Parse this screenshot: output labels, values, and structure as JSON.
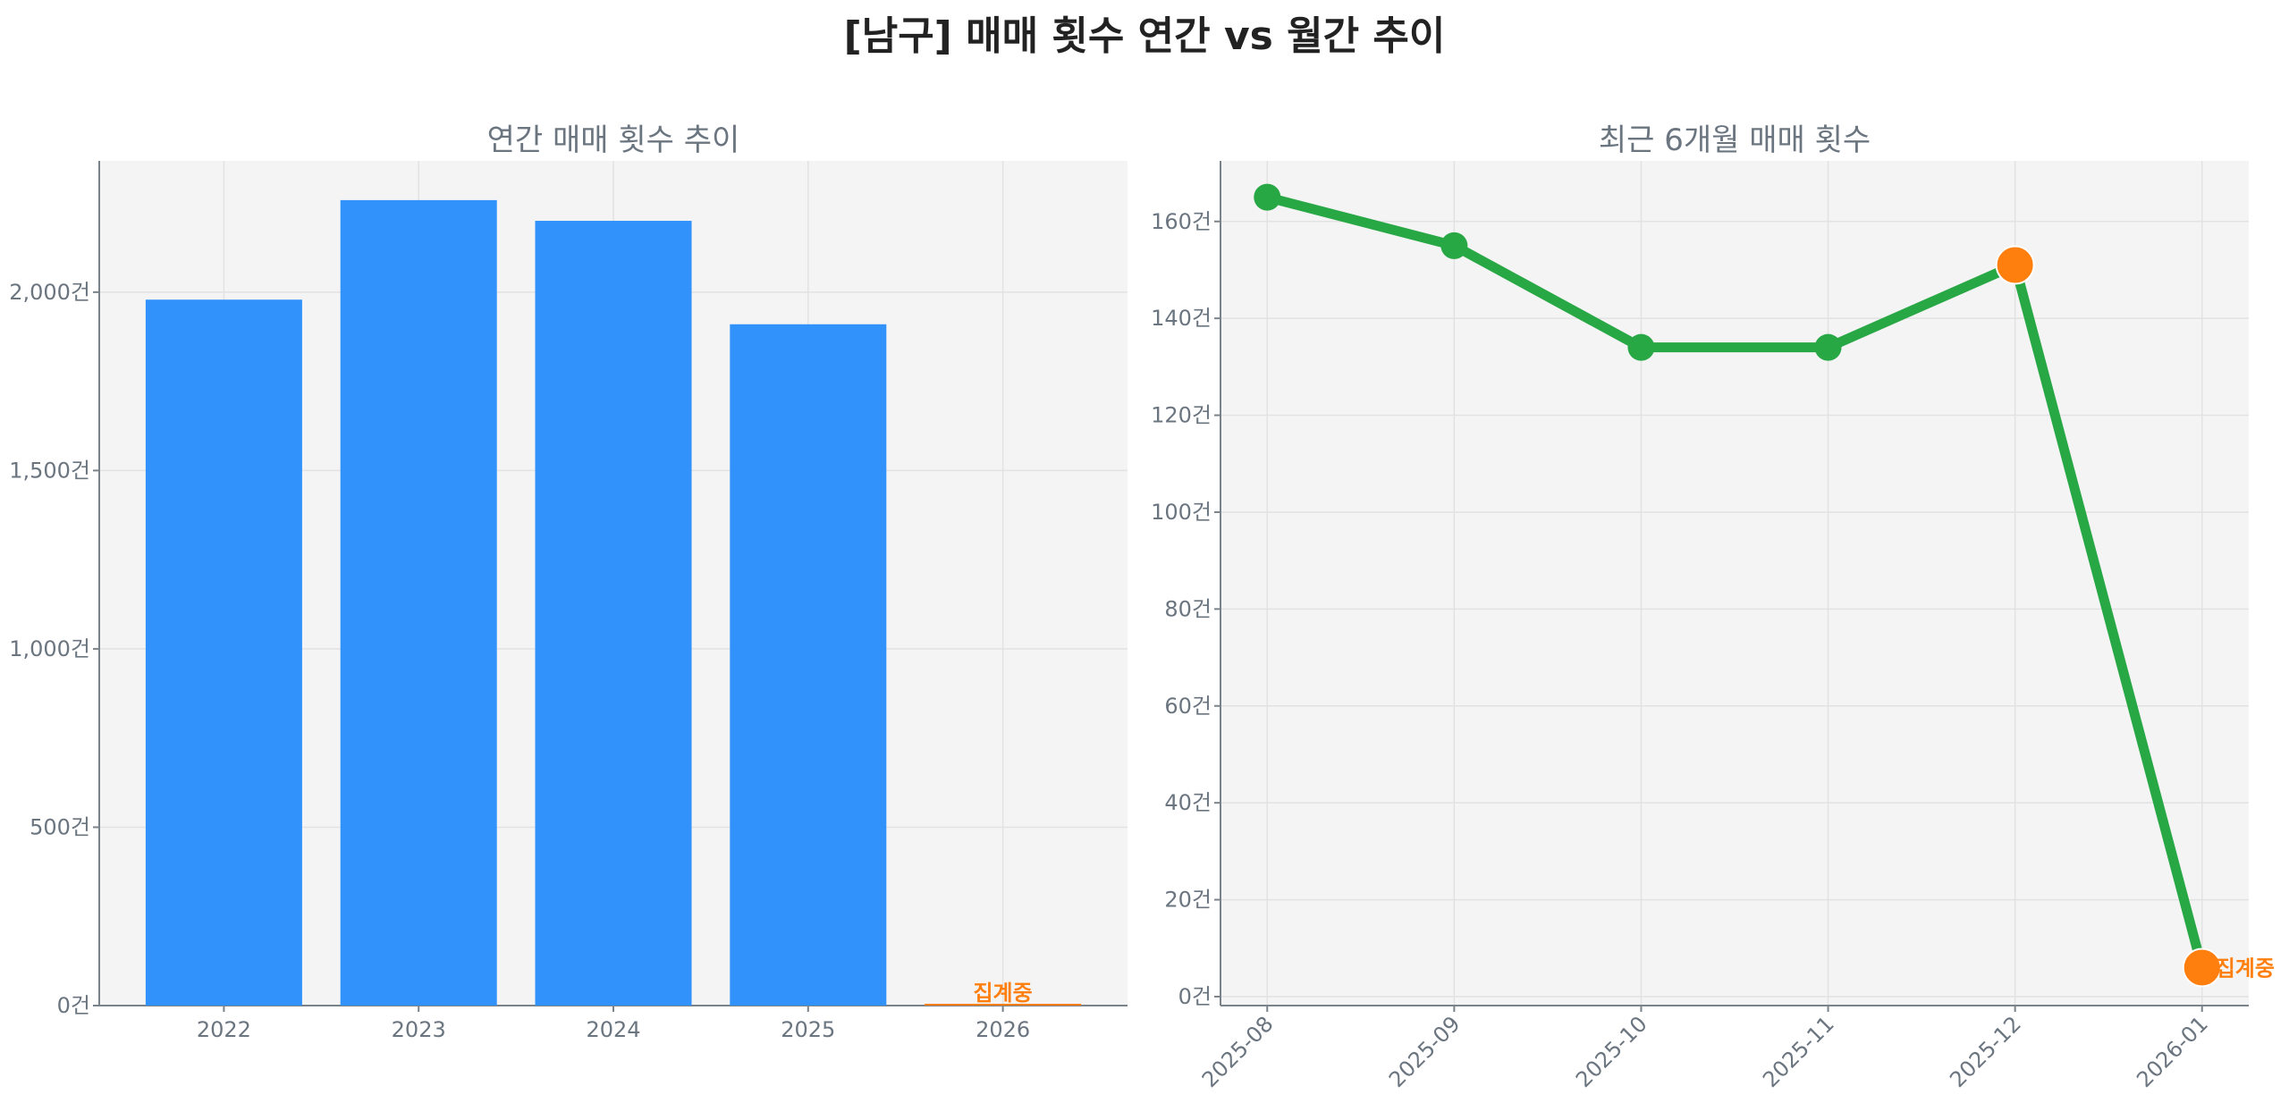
{
  "title": "[남구] 매매 횟수 연간 vs 월간 추이",
  "chart_data": [
    {
      "type": "bar",
      "title": "연간 매매 횟수 추이",
      "categories": [
        "2022",
        "2023",
        "2024",
        "2025",
        "2026"
      ],
      "values": [
        1979,
        2258,
        2200,
        1910,
        6
      ],
      "ylim": [
        0,
        2368
      ],
      "yticks": [
        0,
        500,
        1000,
        1500,
        2000
      ],
      "ytick_labels": [
        "0건",
        "500건",
        "1,000건",
        "1,500건",
        "2,000건"
      ],
      "bar_color": "#3192fb",
      "highlight_color": "#ff7f0e",
      "annotation": {
        "category": "2026",
        "text": "집계중"
      },
      "grid": true
    },
    {
      "type": "line",
      "title": "최근 6개월 매매 횟수",
      "x": [
        "2025-08",
        "2025-09",
        "2025-10",
        "2025-11",
        "2025-12",
        "2026-01"
      ],
      "values": [
        165,
        155,
        134,
        134,
        151,
        6
      ],
      "ylim": [
        -1.85,
        172.5
      ],
      "yticks": [
        0,
        20,
        40,
        60,
        80,
        100,
        120,
        140,
        160
      ],
      "ytick_labels": [
        "0건",
        "20건",
        "40건",
        "60건",
        "80건",
        "100건",
        "120건",
        "140건",
        "160건"
      ],
      "line_color": "#28a745",
      "highlight_points": [
        "2025-12",
        "2026-01"
      ],
      "highlight_color": "#ff7f0e",
      "annotation": {
        "x": "2026-01",
        "text": "집계중"
      },
      "grid": true
    }
  ]
}
